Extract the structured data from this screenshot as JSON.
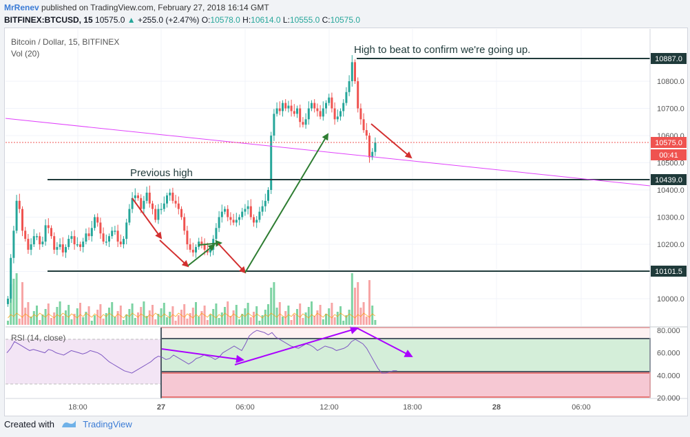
{
  "header": {
    "publisher": "MrRenev",
    "published_text": "published on TradingView.com, February 27, 2018 16:14 GMT",
    "symbol": "BITFINEX:BTCUSD, 15",
    "last": "10575.0",
    "change": "+255.0 (+2.47%)",
    "o_label": "O:",
    "o": "10578.0",
    "h_label": "H:",
    "h": "10614.0",
    "l_label": "L:",
    "l": "10555.0",
    "c_label": "C:",
    "c": "10575.0"
  },
  "legend": {
    "title": "Bitcoin / Dollar, 15, BITFINEX",
    "vol": "Vol (20)",
    "rsi": "RSI (14, close)"
  },
  "annotations": {
    "high_text": "High to beat to confirm we're going up.",
    "prev_high_text": "Previous high"
  },
  "colors": {
    "up": "#26a69a",
    "up_light": "#7dd3a3",
    "down": "#ef5350",
    "down_light": "#f7a5a5",
    "level_line": "#1f3a3a",
    "trendline": "#e040fb",
    "arrow_red": "#d32f2f",
    "arrow_green": "#2e7d32",
    "arrow_purple": "#aa00ff",
    "rsi_line": "#7e57c2"
  },
  "price_labels": {
    "level_high": "10887.0",
    "current": "10575.0",
    "countdown": "00:41",
    "level_prev": "10439.0",
    "level_low": "10101.5"
  },
  "footer": {
    "created": "Created with",
    "brand": "TradingView"
  },
  "chart_data": {
    "type": "candlestick",
    "price_axis_ticks": [
      10000,
      10100,
      10200,
      10300,
      10400,
      10500,
      10600,
      10700,
      10800
    ],
    "price_axis_labels": [
      "10000.0",
      "10100.0",
      "10200.0",
      "10300.0",
      "10400.0",
      "10500.0",
      "10600.0",
      "10700.0",
      "10800.0"
    ],
    "rsi_axis_labels": [
      "20.000",
      "40.000",
      "60.000",
      "80.000"
    ],
    "rsi_axis_values": [
      20,
      40,
      60,
      80
    ],
    "time_labels": [
      "18:00",
      "27",
      "06:00",
      "12:00",
      "18:00",
      "28",
      "06:00"
    ],
    "levels": {
      "high_to_beat": 10887.0,
      "previous_high": 10439.0,
      "support": 10101.5,
      "current": 10575.0
    },
    "last_candle": {
      "open": 10578.0,
      "high": 10614.0,
      "low": 10555.0,
      "close": 10575.0
    },
    "change": 255.0,
    "change_pct": 2.47,
    "rsi_value": 45
  }
}
